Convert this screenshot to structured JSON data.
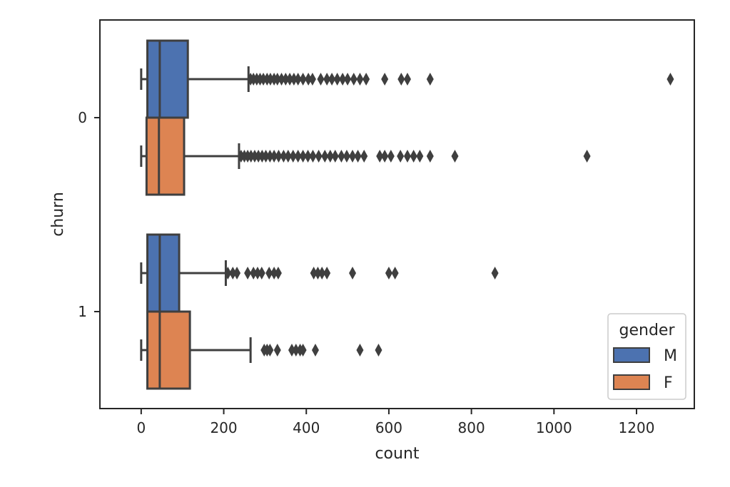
{
  "chart_data": {
    "type": "boxplot",
    "orientation": "horizontal",
    "xlabel": "count",
    "ylabel": "churn",
    "xlim": [
      -100,
      1340
    ],
    "x_ticks": [
      0,
      200,
      400,
      600,
      800,
      1000,
      1200
    ],
    "categories": [
      "0",
      "1"
    ],
    "legend": {
      "title": "gender",
      "position": "lower-right",
      "entries": [
        {
          "label": "M",
          "color": "#4c72b0"
        },
        {
          "label": "F",
          "color": "#dd8452"
        }
      ]
    },
    "series": [
      {
        "name": "M",
        "color": "#4c72b0",
        "boxes": [
          {
            "category": "0",
            "whisker_low": 0,
            "q1": 15,
            "median": 45,
            "q3": 113,
            "whisker_high": 260,
            "outliers": [
              265,
              272,
              280,
              288,
              296,
              305,
              313,
              322,
              330,
              340,
              350,
              360,
              370,
              380,
              392,
              405,
              415,
              435,
              450,
              462,
              475,
              488,
              500,
              515,
              530,
              545,
              590,
              630,
              645,
              700,
              1282
            ]
          },
          {
            "category": "1",
            "whisker_low": 0,
            "q1": 15,
            "median": 45,
            "q3": 92,
            "whisker_high": 205,
            "outliers": [
              210,
              222,
              232,
              258,
              272,
              282,
              292,
              310,
              322,
              332,
              418,
              428,
              438,
              450,
              512,
              600,
              615,
              857
            ]
          }
        ]
      },
      {
        "name": "F",
        "color": "#dd8452",
        "boxes": [
          {
            "category": "0",
            "whisker_low": 0,
            "q1": 13,
            "median": 43,
            "q3": 104,
            "whisker_high": 237,
            "outliers": [
              242,
              250,
              258,
              266,
              275,
              284,
              293,
              302,
              312,
              322,
              333,
              345,
              356,
              368,
              380,
              392,
              404,
              416,
              430,
              445,
              458,
              470,
              485,
              498,
              512,
              525,
              540,
              578,
              590,
              605,
              628,
              645,
              660,
              675,
              700,
              760,
              1080
            ]
          },
          {
            "category": "1",
            "whisker_low": 0,
            "q1": 15,
            "median": 45,
            "q3": 118,
            "whisker_high": 265,
            "outliers": [
              298,
              305,
              312,
              330,
              365,
              375,
              385,
              392,
              422,
              530,
              575
            ]
          }
        ]
      }
    ]
  }
}
